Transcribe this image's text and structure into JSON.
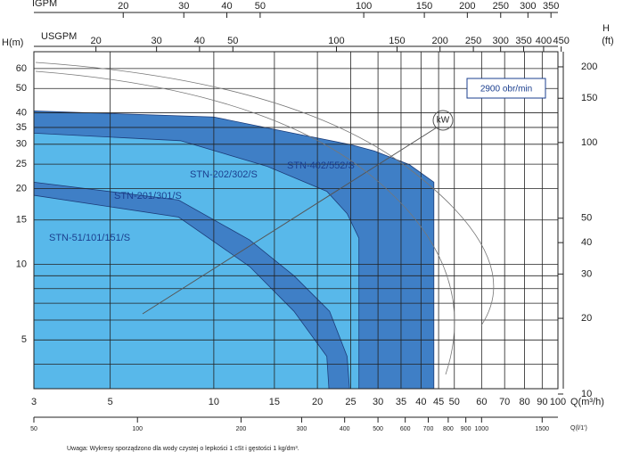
{
  "chart_data": {
    "type": "area",
    "x_label": "Q(m³/h)",
    "y_label": "H(m)",
    "xlim": [
      3,
      100
    ],
    "ylim": [
      3.2,
      70
    ],
    "log_scale": true,
    "grid": true,
    "xticks": [
      3,
      5,
      10,
      15,
      20,
      25,
      30,
      35,
      40,
      45,
      50,
      60,
      70,
      80,
      90,
      100
    ],
    "yticks": [
      5,
      10,
      15,
      20,
      25,
      30,
      35,
      40,
      50,
      60
    ],
    "y_minor_grid": [
      4,
      6,
      7,
      8,
      9
    ],
    "secondary_axes": [
      {
        "side": "top",
        "label": "IGPM",
        "lim": [
          11,
          366.7
        ],
        "ticks": [
          20,
          30,
          40,
          50,
          100,
          150,
          200,
          250,
          300,
          350
        ]
      },
      {
        "side": "top-inner",
        "label": "USGPM",
        "lim": [
          13.2,
          440.3
        ],
        "ticks": [
          20,
          30,
          40,
          50,
          100,
          150,
          200,
          250,
          300,
          350,
          400,
          450
        ]
      },
      {
        "side": "bottom",
        "label": "Q(l/1')",
        "lim": [
          50,
          1667
        ],
        "ticks": [
          50,
          100,
          200,
          300,
          400,
          500,
          600,
          700,
          800,
          900,
          1000,
          1500
        ]
      },
      {
        "side": "right",
        "label": "H",
        "unit": "(ft)",
        "lim": [
          10.5,
          229.7
        ],
        "ticks": [
          10,
          20,
          30,
          40,
          50,
          100,
          150,
          200
        ]
      }
    ],
    "series": [
      {
        "name": "STN-402/552/S",
        "color": "#3f7fc6",
        "x": [
          3,
          10,
          17,
          25,
          29.3,
          37,
          43.6
        ],
        "values": [
          40.7,
          38.5,
          33.2,
          29.9,
          28.2,
          24.9,
          21.2
        ]
      },
      {
        "name": "STN-202/302/S",
        "color": "#58b8ea",
        "x": [
          3,
          8,
          14.3,
          21.3,
          24.4,
          26.4
        ],
        "values": [
          33.2,
          31,
          24.5,
          19.5,
          15.9,
          12.7
        ]
      },
      {
        "name": "STN-201/301/S",
        "color": "#3f7fc6",
        "x": [
          3,
          7.9,
          12.7,
          17.1,
          21.7,
          24.4,
          24.8
        ],
        "values": [
          21.2,
          18,
          12.5,
          9,
          6.5,
          4.3,
          3.2
        ]
      },
      {
        "name": "STN-51/101/151/S",
        "color": "#58b8ea",
        "x": [
          3,
          7.9,
          12.7,
          17.1,
          21.3,
          21.6
        ],
        "values": [
          18.8,
          15.4,
          9.8,
          6.5,
          4.3,
          3.2
        ]
      }
    ],
    "annotations": {
      "speed": "2900 obr/min",
      "power": "kW"
    },
    "note": "Uwaga: Wykresy sporządzono dla wody czystej o lepkości 1 cSt i gęstości 1 kg/dm³."
  }
}
